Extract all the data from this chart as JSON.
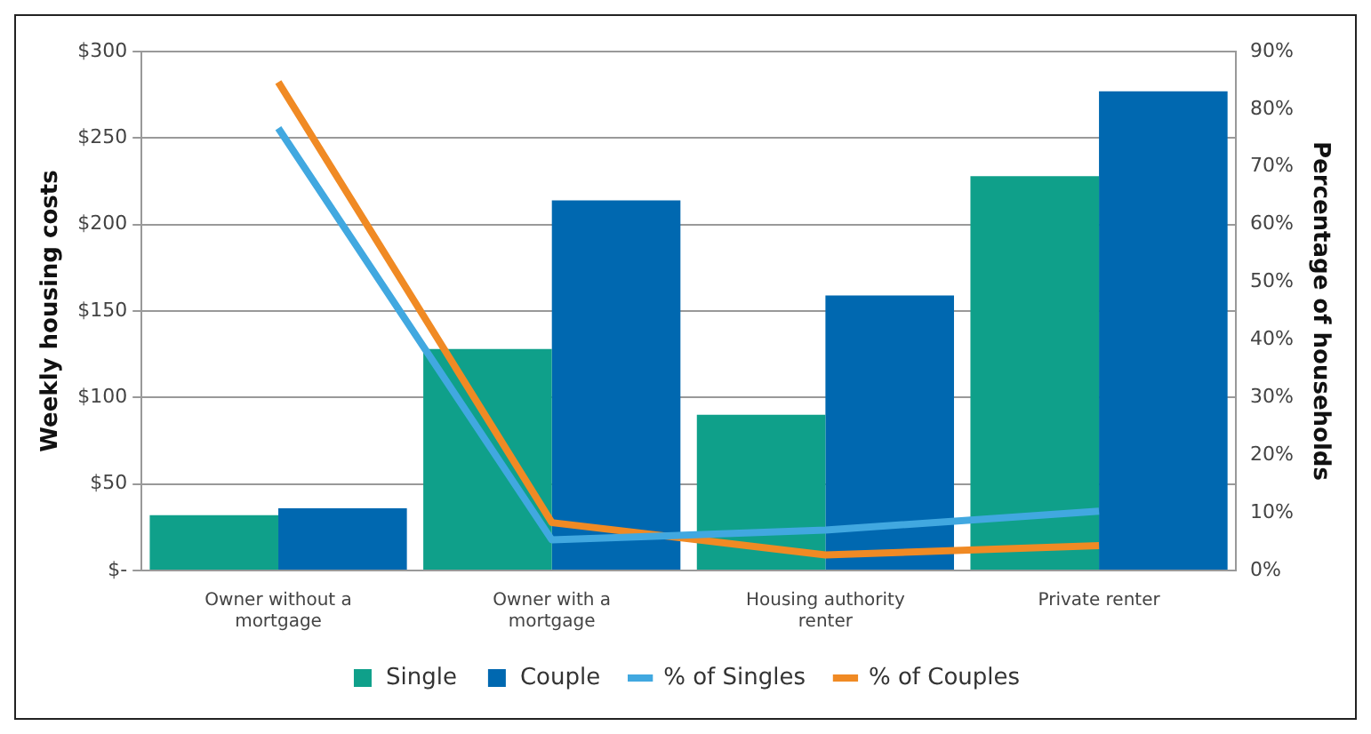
{
  "chart_data": {
    "type": "bar",
    "ylabel": "Weekly housing costs",
    "y2label": "Percentage of households",
    "categories": [
      "Owner without a mortgage",
      "Owner with a mortgage",
      "Housing authority renter",
      "Private renter"
    ],
    "series": [
      {
        "name": "Single",
        "color": "#0fa08a",
        "values": [
          32,
          128,
          90,
          228
        ]
      },
      {
        "name": "Couple",
        "color": "#0068b0",
        "values": [
          36,
          214,
          159,
          277
        ]
      },
      {
        "name": "% of Singles",
        "type": "line",
        "axis": "y2",
        "color": "#41a8e0",
        "values": [
          76.7,
          5.3,
          7,
          10.3
        ]
      },
      {
        "name": "% of Couples",
        "type": "line",
        "axis": "y2",
        "color": "#f08a24",
        "values": [
          84.7,
          8.3,
          2.7,
          4.3
        ]
      }
    ],
    "ylim": [
      0,
      300
    ],
    "yticks": [
      {
        "value": 0,
        "label": "$-"
      },
      {
        "value": 50,
        "label": "$50"
      },
      {
        "value": 100,
        "label": "$100"
      },
      {
        "value": 150,
        "label": "$150"
      },
      {
        "value": 200,
        "label": "$200"
      },
      {
        "value": 250,
        "label": "$250"
      },
      {
        "value": 300,
        "label": "$300"
      }
    ],
    "y2lim": [
      0,
      90
    ],
    "y2ticks": [
      {
        "value": 0,
        "label": "0%"
      },
      {
        "value": 10,
        "label": "10%"
      },
      {
        "value": 20,
        "label": "20%"
      },
      {
        "value": 30,
        "label": "30%"
      },
      {
        "value": 40,
        "label": "40%"
      },
      {
        "value": 50,
        "label": "50%"
      },
      {
        "value": 60,
        "label": "60%"
      },
      {
        "value": 70,
        "label": "70%"
      },
      {
        "value": 80,
        "label": "80%"
      },
      {
        "value": 90,
        "label": "90%"
      }
    ],
    "grid": "y",
    "legend": "bottom",
    "marker": "none"
  }
}
